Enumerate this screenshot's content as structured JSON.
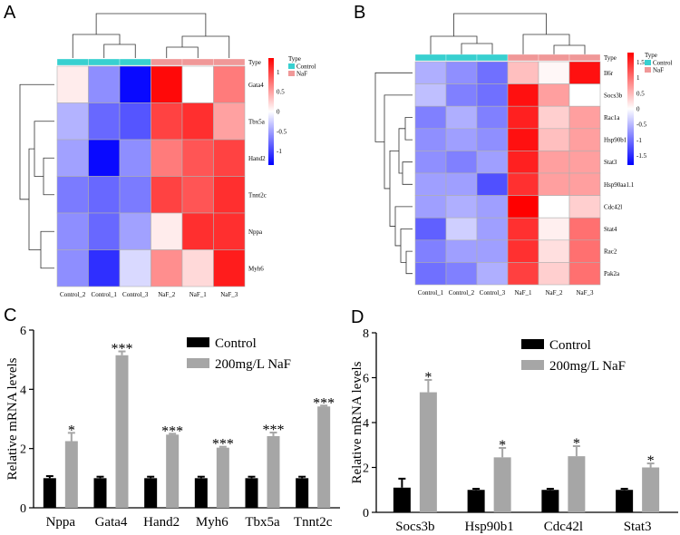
{
  "panels": {
    "a": "A",
    "b": "B",
    "c": "C",
    "d": "D"
  },
  "chart_data": [
    {
      "type": "heatmap",
      "panel": "A",
      "columns": [
        "Control_2",
        "Control_1",
        "Control_3",
        "NaF_2",
        "NaF_1",
        "NaF_3"
      ],
      "column_groups": [
        "Control",
        "Control",
        "Control",
        "NaF",
        "NaF",
        "NaF"
      ],
      "rows": [
        "Gata4",
        "Tbx5a",
        "Hand2",
        "Tnnt2c",
        "Nppa",
        "Myh6"
      ],
      "values": [
        [
          0.1,
          -0.6,
          -1.3,
          1.3,
          0.0,
          0.7
        ],
        [
          -0.4,
          -0.8,
          -0.9,
          1.0,
          1.1,
          0.5
        ],
        [
          -0.5,
          -1.3,
          -0.6,
          0.7,
          0.9,
          1.0
        ],
        [
          -0.7,
          -0.8,
          -0.7,
          1.0,
          0.9,
          1.1
        ],
        [
          -0.6,
          -0.8,
          -0.5,
          0.1,
          1.1,
          1.1
        ],
        [
          -0.6,
          -1.1,
          -0.2,
          0.6,
          0.2,
          1.2
        ]
      ],
      "type_label": "Type",
      "legend_title": "Type",
      "legend_items": [
        "Control",
        "NaF"
      ],
      "colorbar_ticks": [
        "1",
        "0.5",
        "0",
        "-0.5",
        "-1"
      ],
      "colors": {
        "low": "#0000ff",
        "mid": "#ffffff",
        "high": "#ff0000",
        "control": "#38d0d0",
        "naf": "#f09898"
      }
    },
    {
      "type": "heatmap",
      "panel": "B",
      "columns": [
        "Control_1",
        "Control_2",
        "Control_3",
        "NaF_1",
        "NaF_2",
        "NaF_3"
      ],
      "column_groups": [
        "Control",
        "Control",
        "Control",
        "NaF",
        "NaF",
        "NaF"
      ],
      "rows": [
        "Il6r",
        "Socs3b",
        "Rac1a",
        "Hsp90b1",
        "Stat3",
        "Hsp90aa1.1",
        "Cdc42l",
        "Stat4",
        "Rac2",
        "Pak2a"
      ],
      "values": [
        [
          -0.5,
          -0.7,
          -0.9,
          0.4,
          0.05,
          1.5
        ],
        [
          -0.4,
          -0.8,
          -0.9,
          1.5,
          0.6,
          0.0
        ],
        [
          -0.8,
          -0.5,
          -0.8,
          1.4,
          0.3,
          0.6
        ],
        [
          -0.7,
          -0.6,
          -0.7,
          1.5,
          0.4,
          0.6
        ],
        [
          -0.7,
          -0.8,
          -0.6,
          1.4,
          0.6,
          0.6
        ],
        [
          -0.6,
          -0.6,
          -1.1,
          1.3,
          0.6,
          0.6
        ],
        [
          -0.6,
          -0.5,
          -0.6,
          1.6,
          0.0,
          0.3
        ],
        [
          -1.0,
          -0.3,
          -0.6,
          1.3,
          0.1,
          0.9
        ],
        [
          -0.8,
          -0.6,
          -0.6,
          1.3,
          0.2,
          0.9
        ],
        [
          -0.9,
          -0.8,
          -0.5,
          1.2,
          0.3,
          0.9
        ]
      ],
      "type_label": "Type",
      "legend_title": "Type",
      "legend_items": [
        "Control",
        "NaF"
      ],
      "colorbar_ticks": [
        "1.5",
        "1",
        "0.5",
        "0",
        "-0.5",
        "-1",
        "-1.5"
      ],
      "colors": {
        "low": "#0000ff",
        "mid": "#ffffff",
        "high": "#ff0000",
        "control": "#38d0d0",
        "naf": "#f09898"
      }
    },
    {
      "type": "bar",
      "panel": "C",
      "categories": [
        "Nppa",
        "Gata4",
        "Hand2",
        "Myh6",
        "Tbx5a",
        "Tnnt2c"
      ],
      "series": [
        {
          "name": "Control",
          "values": [
            1.0,
            1.0,
            1.0,
            1.0,
            1.0,
            1.0
          ],
          "errors": [
            0.07,
            0.05,
            0.05,
            0.05,
            0.05,
            0.05
          ],
          "color": "#000000"
        },
        {
          "name": "200mg/L NaF",
          "values": [
            2.25,
            5.15,
            2.47,
            2.03,
            2.42,
            3.42
          ],
          "errors": [
            0.28,
            0.13,
            0.03,
            0.03,
            0.12,
            0.03
          ],
          "color": "#a6a6a6"
        }
      ],
      "significance": [
        "*",
        "***",
        "***",
        "***",
        "***",
        "***"
      ],
      "ylabel": "Relative mRNA levels",
      "yticks": [
        "0",
        "2",
        "4",
        "6"
      ],
      "ylim": [
        0,
        6
      ]
    },
    {
      "type": "bar",
      "panel": "D",
      "categories": [
        "Socs3b",
        "Hsp90b1",
        "Cdc42l",
        "Stat3"
      ],
      "series": [
        {
          "name": "Control",
          "values": [
            1.1,
            1.0,
            1.0,
            1.0
          ],
          "errors": [
            0.4,
            0.05,
            0.05,
            0.05
          ],
          "color": "#000000"
        },
        {
          "name": "200mg/L NaF",
          "values": [
            5.35,
            2.45,
            2.5,
            2.0
          ],
          "errors": [
            0.55,
            0.42,
            0.45,
            0.18
          ],
          "color": "#a6a6a6"
        }
      ],
      "significance": [
        "*",
        "*",
        "*",
        "*"
      ],
      "ylabel": "Relative mRNA levels",
      "yticks": [
        "0",
        "2",
        "4",
        "6",
        "8"
      ],
      "ylim": [
        0,
        8
      ]
    }
  ]
}
